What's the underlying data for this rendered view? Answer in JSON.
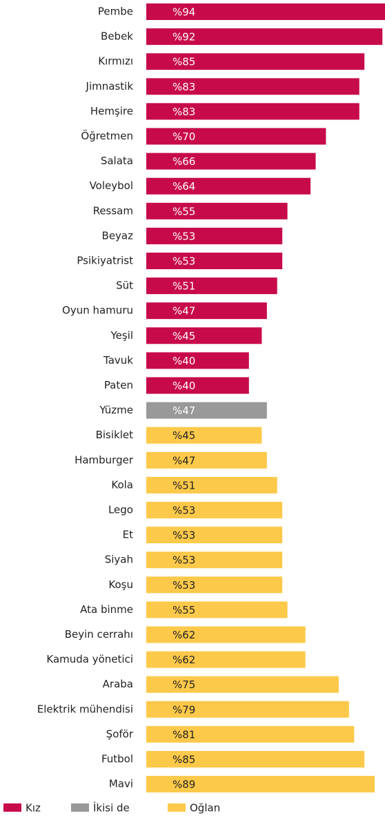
{
  "chart_data": {
    "type": "bar",
    "orientation": "horizontal",
    "categories": [
      "Pembe",
      "Bebek",
      "Kırmızı",
      "Jimnastik",
      "Hemşire",
      "Öğretmen",
      "Salata",
      "Voleybol",
      "Ressam",
      "Beyaz",
      "Psikiyatrist",
      "Süt",
      "Oyun hamuru",
      "Yeşil",
      "Tavuk",
      "Paten",
      "Yüzme",
      "Bisiklet",
      "Hamburger",
      "Kola",
      "Lego",
      "Et",
      "Siyah",
      "Koşu",
      "Ata binme",
      "Beyin cerrahı",
      "Kamuda yönetici",
      "Araba",
      "Elektrik mühendisi",
      "Şoför",
      "Futbol",
      "Mavi"
    ],
    "series": [
      {
        "name": "Kız",
        "color": "#c70a4a",
        "label_color": "#ffffff",
        "values": [
          94,
          92,
          85,
          83,
          83,
          70,
          66,
          64,
          55,
          53,
          53,
          51,
          47,
          45,
          40,
          40,
          null,
          null,
          null,
          null,
          null,
          null,
          null,
          null,
          null,
          null,
          null,
          null,
          null,
          null,
          null,
          null
        ],
        "value_labels": [
          "%94",
          "%92",
          "%85",
          "%83",
          "%83",
          "%70",
          "%66",
          "%64",
          "%55",
          "%53",
          "%53",
          "%51",
          "%47",
          "%45",
          "%40",
          "%40",
          null,
          null,
          null,
          null,
          null,
          null,
          null,
          null,
          null,
          null,
          null,
          null,
          null,
          null,
          null,
          null
        ]
      },
      {
        "name": "İkisi de",
        "color": "#999999",
        "label_color": "#ffffff",
        "values": [
          null,
          null,
          null,
          null,
          null,
          null,
          null,
          null,
          null,
          null,
          null,
          null,
          null,
          null,
          null,
          null,
          47,
          null,
          null,
          null,
          null,
          null,
          null,
          null,
          null,
          null,
          null,
          null,
          null,
          null,
          null,
          null
        ],
        "value_labels": [
          null,
          null,
          null,
          null,
          null,
          null,
          null,
          null,
          null,
          null,
          null,
          null,
          null,
          null,
          null,
          null,
          "%47",
          null,
          null,
          null,
          null,
          null,
          null,
          null,
          null,
          null,
          null,
          null,
          null,
          null,
          null,
          null
        ]
      },
      {
        "name": "Oğlan",
        "color": "#fdc94a",
        "label_color": "#222222",
        "values": [
          null,
          null,
          null,
          null,
          null,
          null,
          null,
          null,
          null,
          null,
          null,
          null,
          null,
          null,
          null,
          null,
          null,
          45,
          47,
          51,
          53,
          53,
          53,
          53,
          55,
          62,
          62,
          75,
          79,
          81,
          85,
          89
        ],
        "value_labels": [
          null,
          null,
          null,
          null,
          null,
          null,
          null,
          null,
          null,
          null,
          null,
          null,
          null,
          null,
          null,
          null,
          null,
          "%45",
          "%47",
          "%51",
          "%53",
          "%53",
          "%53",
          "%53",
          "%55",
          "%62",
          "%62",
          "%75",
          "%79",
          "%81",
          "%85",
          "%89"
        ]
      }
    ]
  }
}
